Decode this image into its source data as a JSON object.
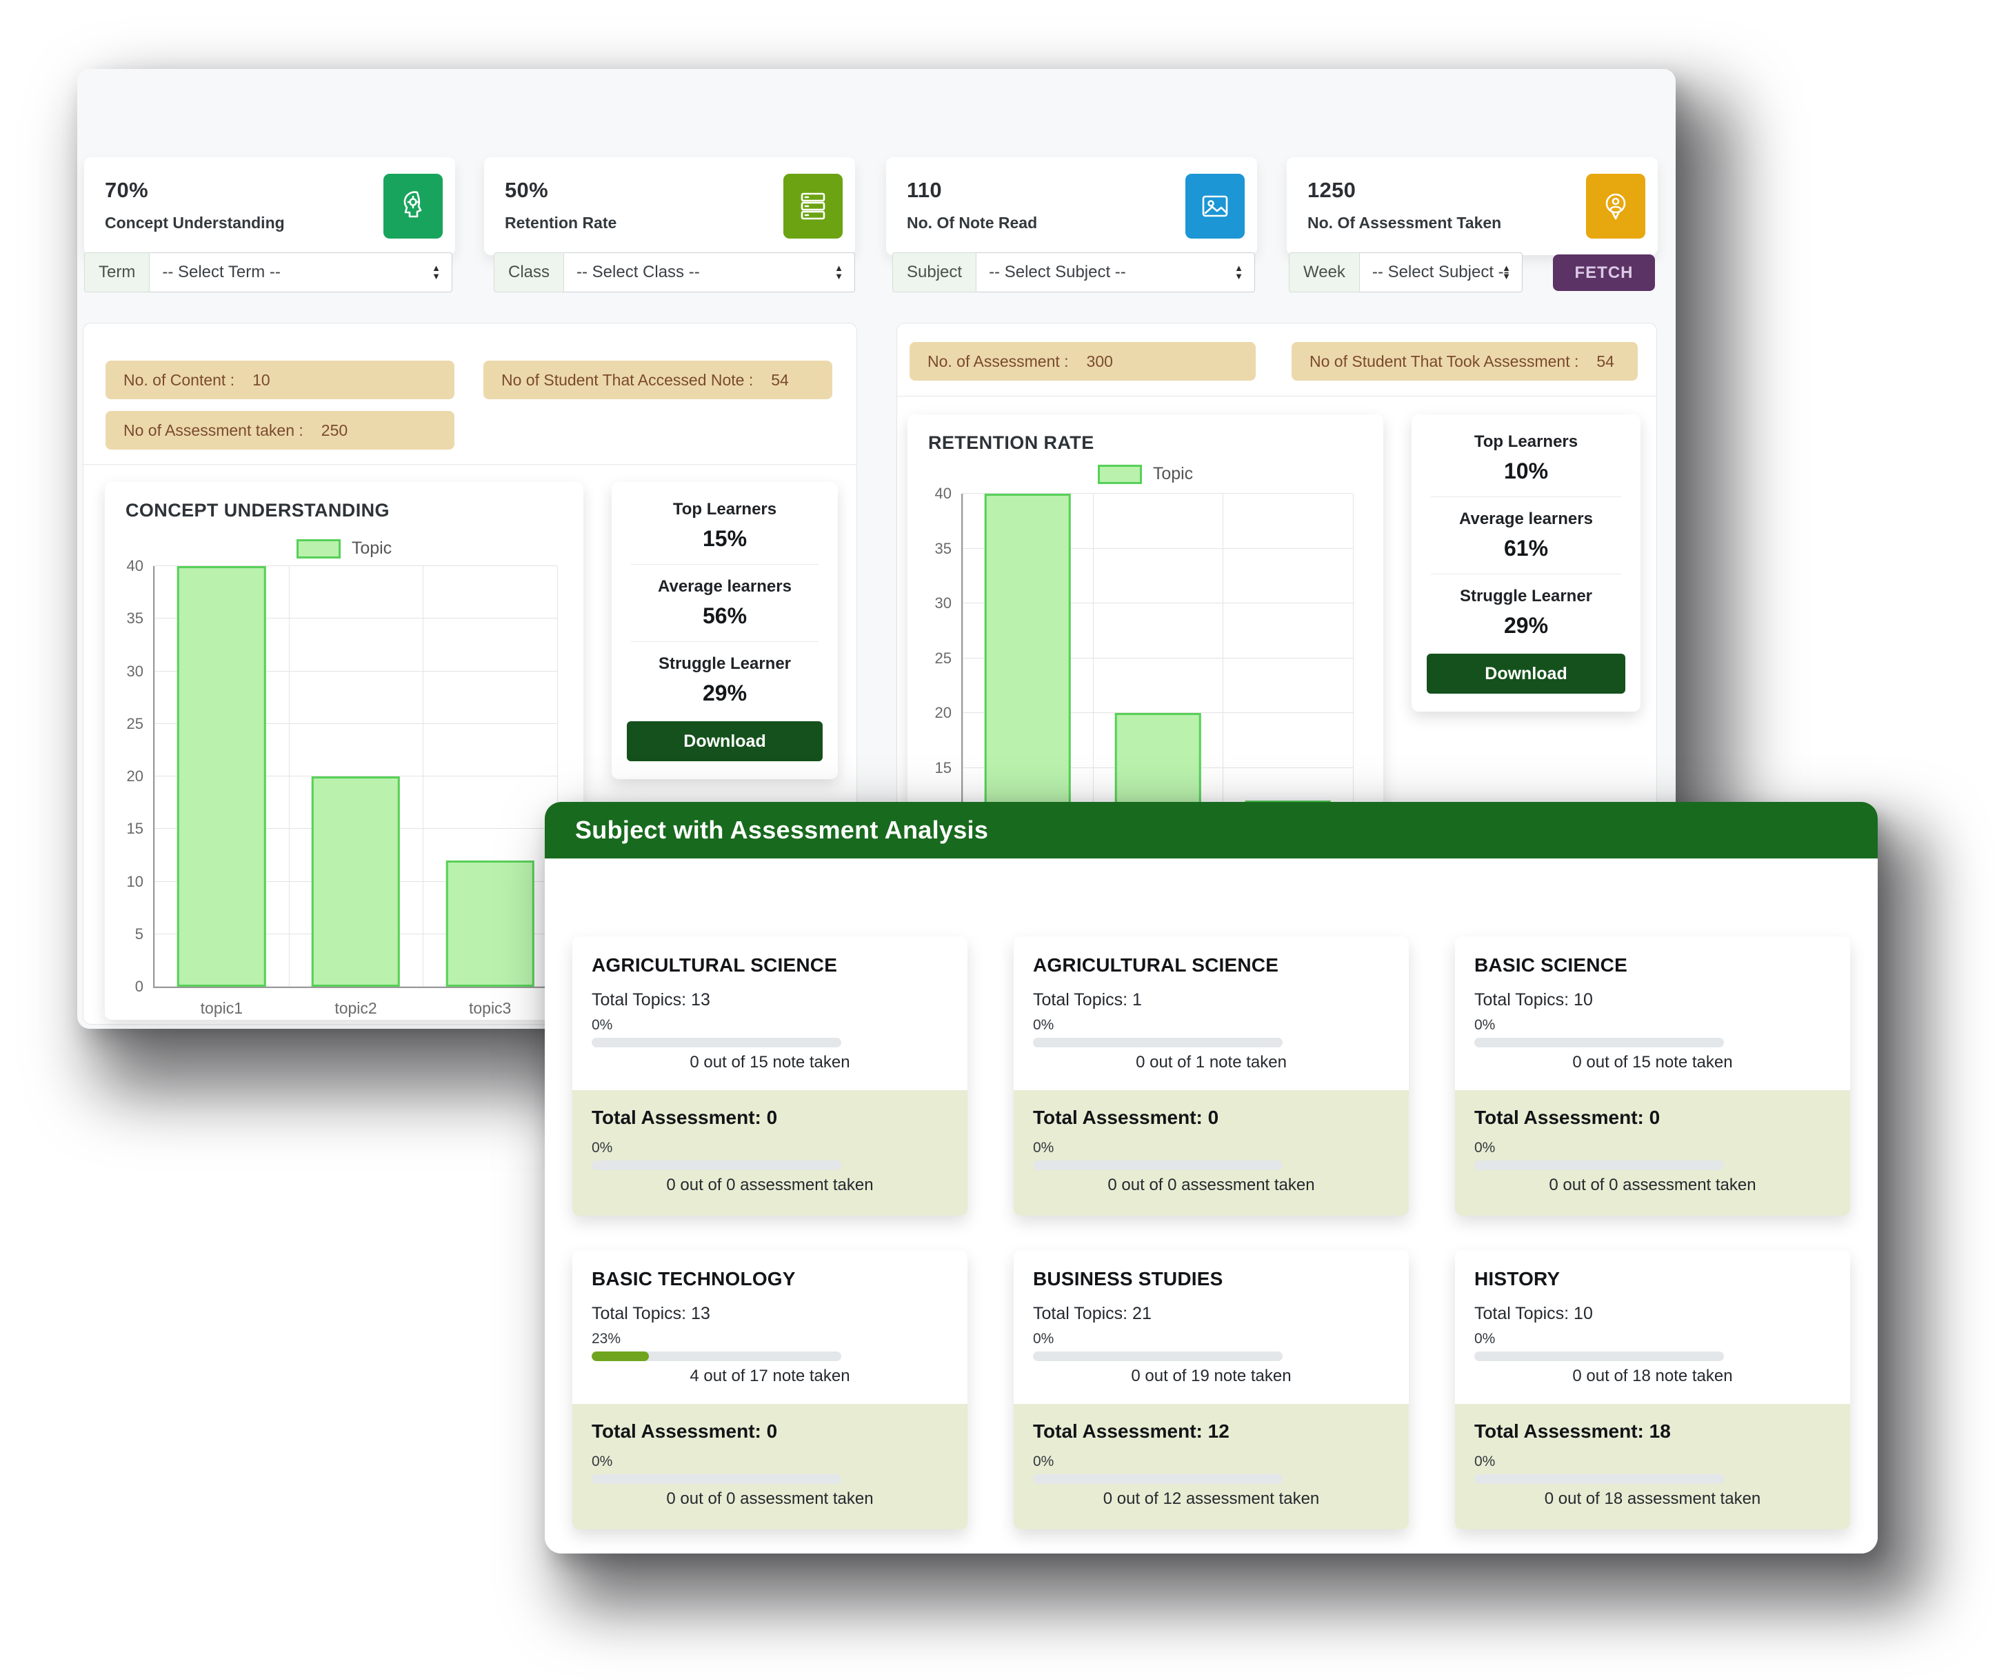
{
  "stats": [
    {
      "value": "70%",
      "label": "Concept Understanding",
      "icon": "head-bulb-icon",
      "color": "#18a45c"
    },
    {
      "value": "50%",
      "label": "Retention Rate",
      "icon": "server-list-icon",
      "color": "#6ca312"
    },
    {
      "value": "110",
      "label": "No. Of Note Read",
      "icon": "note-image-icon",
      "color": "#1c96d4"
    },
    {
      "value": "1250",
      "label": "No. Of Assessment Taken",
      "icon": "person-pin-icon",
      "color": "#e7a70e"
    }
  ],
  "filters": {
    "items": [
      {
        "label": "Term",
        "value": "-- Select Term --"
      },
      {
        "label": "Class",
        "value": "-- Select Class --"
      },
      {
        "label": "Subject",
        "value": "-- Select Subject --"
      },
      {
        "label": "Week",
        "value": "-- Select Subject --"
      }
    ],
    "fetch_label": "FETCH"
  },
  "left_panel": {
    "chips": [
      {
        "label": "No. of Content :",
        "value": "10"
      },
      {
        "label": "No of Student That Accessed Note :",
        "value": "54"
      },
      {
        "label": "No of Assessment taken :",
        "value": "250"
      }
    ],
    "summary": {
      "rows": [
        {
          "label": "Top Learners",
          "value": "15%"
        },
        {
          "label": "Average learners",
          "value": "56%"
        },
        {
          "label": "Struggle Learner",
          "value": "29%"
        }
      ],
      "download_label": "Download"
    }
  },
  "right_panel": {
    "chips": [
      {
        "label": "No. of Assessment :",
        "value": "300"
      },
      {
        "label": "No of Student That Took Assessment :",
        "value": "54"
      }
    ],
    "summary": {
      "rows": [
        {
          "label": "Top Learners",
          "value": "10%"
        },
        {
          "label": "Average learners",
          "value": "61%"
        },
        {
          "label": "Struggle Learner",
          "value": "29%"
        }
      ],
      "download_label": "Download"
    }
  },
  "chart_data": [
    {
      "type": "bar",
      "title": "CONCEPT UNDERSTANDING",
      "legend": [
        "Topic"
      ],
      "categories": [
        "topic1",
        "topic2",
        "topic3"
      ],
      "values": [
        40,
        20,
        12
      ],
      "ylim": [
        0,
        40
      ],
      "ytick_step": 5,
      "grid": true,
      "legend_position": "top-center",
      "xlabels_visible": true,
      "bar_fill": "#b9f1ad",
      "bar_border": "#57d058"
    },
    {
      "type": "bar",
      "title": "RETENTION RATE",
      "legend": [
        "Topic"
      ],
      "categories": [
        "",
        "",
        ""
      ],
      "values": [
        40,
        20,
        12
      ],
      "ylim": [
        0,
        40
      ],
      "ytick_step": 5,
      "grid": true,
      "legend_position": "top-center",
      "xlabels_visible": false,
      "bar_fill": "#b9f1ad",
      "bar_border": "#57d058"
    }
  ],
  "modal": {
    "title": "Subject with Assessment Analysis",
    "cards": [
      {
        "title": "AGRICULTURAL SCIENCE",
        "topics": "Total Topics: 13",
        "note_percent": "0%",
        "note_progress": 0,
        "note_caption": "0 out of 15 note taken",
        "assessment": "Total Assessment: 0",
        "assessment_percent": "0%",
        "assessment_progress": 0,
        "assessment_caption": "0 out of 0 assessment taken"
      },
      {
        "title": "AGRICULTURAL SCIENCE",
        "topics": "Total Topics: 1",
        "note_percent": "0%",
        "note_progress": 0,
        "note_caption": "0 out of 1 note taken",
        "assessment": "Total Assessment: 0",
        "assessment_percent": "0%",
        "assessment_progress": 0,
        "assessment_caption": "0 out of 0 assessment taken"
      },
      {
        "title": "BASIC SCIENCE",
        "topics": "Total Topics: 10",
        "note_percent": "0%",
        "note_progress": 0,
        "note_caption": "0 out of 15 note taken",
        "assessment": "Total Assessment: 0",
        "assessment_percent": "0%",
        "assessment_progress": 0,
        "assessment_caption": "0 out of 0 assessment taken"
      },
      {
        "title": "BASIC TECHNOLOGY",
        "topics": "Total Topics: 13",
        "note_percent": "23%",
        "note_progress": 23,
        "note_caption": "4 out of 17 note taken",
        "assessment": "Total Assessment: 0",
        "assessment_percent": "0%",
        "assessment_progress": 0,
        "assessment_caption": "0 out of 0 assessment taken"
      },
      {
        "title": "BUSINESS STUDIES",
        "topics": "Total Topics: 21",
        "note_percent": "0%",
        "note_progress": 0,
        "note_caption": "0 out of 19 note taken",
        "assessment": "Total Assessment: 12",
        "assessment_percent": "0%",
        "assessment_progress": 0,
        "assessment_caption": "0 out of 12 assessment taken"
      },
      {
        "title": "HISTORY",
        "topics": "Total Topics: 10",
        "note_percent": "0%",
        "note_progress": 0,
        "note_caption": "0 out of 18 note taken",
        "assessment": "Total Assessment: 18",
        "assessment_percent": "0%",
        "assessment_progress": 0,
        "assessment_caption": "0 out of 18 assessment taken"
      }
    ]
  },
  "colors": {
    "modal_header_green": "#186a1e",
    "download_green": "#15511c",
    "fetch_purple": "#5b3365",
    "chip_tan": "#ecd9ab",
    "progress_fill_green": "#6fa51e",
    "card_section_green": "#e7ecd3"
  }
}
